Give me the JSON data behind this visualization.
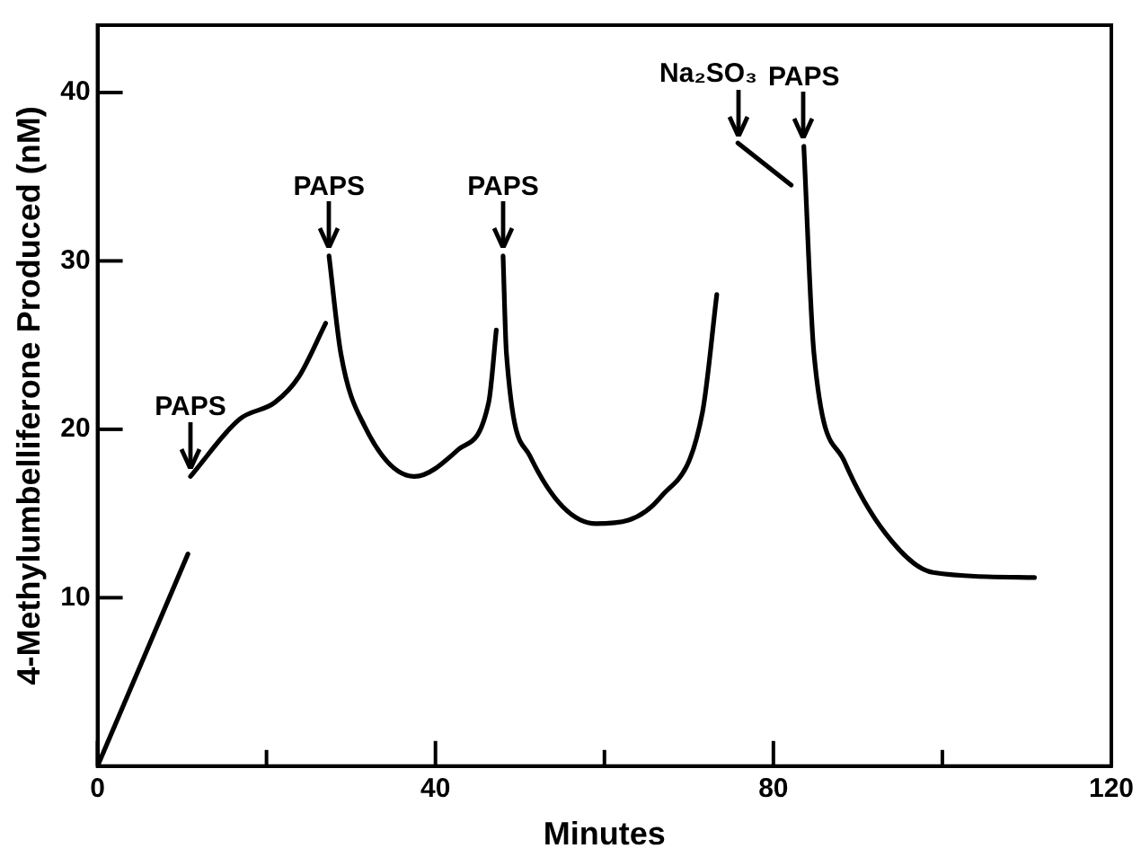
{
  "chart_data": {
    "type": "line",
    "xlabel": "Minutes",
    "ylabel": "4-Methylumbelliferone Produced (nM)",
    "xlim": [
      0,
      120
    ],
    "xticks": [
      0,
      {
        "value": 20,
        "label": null
      },
      40,
      {
        "value": 60,
        "label": null
      },
      80,
      {
        "value": 100,
        "label": null
      },
      120
    ],
    "ylim": [
      0,
      44
    ],
    "yticks": [
      10,
      20,
      30,
      40
    ],
    "grid": false,
    "legend": false,
    "marker": "none",
    "line_style": "solid",
    "series": [
      {
        "color": "#000000",
        "x": [
          0,
          10.7
        ],
        "values": [
          0,
          12.6
        ]
      },
      {
        "color": "#000000",
        "x": [
          11,
          16.8,
          21,
          23.8,
          27
        ],
        "values": [
          17.2,
          20.6,
          21.6,
          23.1,
          26.3
        ]
      },
      {
        "color": "#000000",
        "x": [
          27.4,
          28.8,
          31.6,
          37.5,
          42.7,
          46.3,
          47.2
        ],
        "values": [
          30.3,
          24.5,
          20.2,
          17.2,
          18.8,
          21.6,
          25.9
        ]
      },
      {
        "color": "#000000",
        "x": [
          48,
          48.4,
          51.2,
          59,
          66.7,
          71.6,
          73.3
        ],
        "values": [
          30.3,
          24.5,
          18.4,
          14.4,
          16,
          21,
          28
        ]
      },
      {
        "color": "#000000",
        "x": [
          75.8,
          82.1
        ],
        "values": [
          37,
          34.5
        ]
      },
      {
        "color": "#000000",
        "x": [
          83.6,
          84.8,
          88.4,
          93.3,
          98.9,
          110.9
        ],
        "values": [
          36.8,
          24.5,
          18.1,
          13.8,
          11.5,
          11.2
        ]
      }
    ],
    "annotations": [
      {
        "text": "PAPS",
        "x": 11,
        "y": 17.2
      },
      {
        "text": "PAPS",
        "x": 27.4,
        "y": 30.3
      },
      {
        "text": "PAPS",
        "x": 48,
        "y": 30.3
      },
      {
        "text": "Na₂SO₃",
        "x": 75.8,
        "y": 37
      },
      {
        "text": "PAPS",
        "x": 83.6,
        "y": 36.8
      }
    ]
  }
}
